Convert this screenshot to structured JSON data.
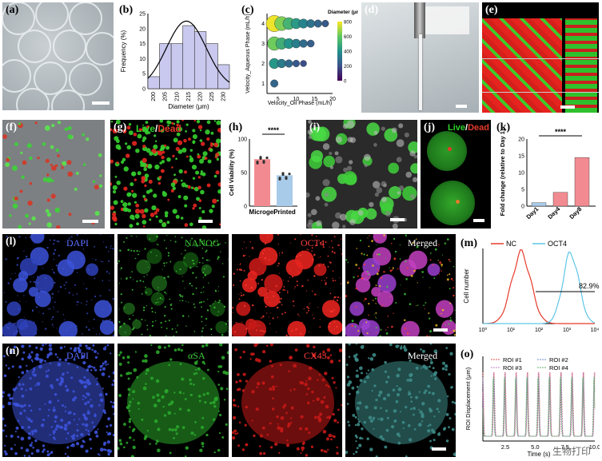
{
  "labels": {
    "a": "(a)",
    "b": "(b)",
    "c": "(c)",
    "d": "(d)",
    "e": "(e)",
    "f": "(f)",
    "g": "(g)",
    "h": "(h)",
    "i": "(i)",
    "j": "(j)",
    "k": "(k)",
    "l": "(l)",
    "m": "(m)",
    "n": "(n)",
    "o": "(o)"
  },
  "overlay": {
    "live": "Live",
    "slash": "/",
    "dead": "Dead",
    "dapi": "DAPI",
    "nanog": "NANOG",
    "oct4": "OCT4",
    "merged": "Merged",
    "asa": "αSA",
    "cx43": "CX43"
  },
  "colors": {
    "green": "#2fd12a",
    "red": "#e53a2a",
    "blue": "#3b4fd8",
    "pink": "#f28b91",
    "lightblue": "#a9cbea"
  },
  "watermark": "生物打印",
  "chart_data": [
    {
      "id": "b",
      "type": "bar",
      "xlabel": "Diameter (μm)",
      "ylabel": "Frequency (%)",
      "categories": [
        "200",
        "205",
        "210",
        "215",
        "220",
        "225",
        "230"
      ],
      "values": [
        4,
        15,
        15,
        21,
        19,
        15,
        8
      ],
      "ylim": [
        0,
        25
      ],
      "yticks": [
        "0",
        "5",
        "10",
        "15",
        "20",
        "25"
      ],
      "fit": "normal curve"
    },
    {
      "id": "c",
      "type": "scatter",
      "xlabel": "Velocity_Oil Phase (mL/h)",
      "ylabel": "Velocity_Aqueous Phase (mL/h)",
      "xticks": [
        "5",
        "10",
        "15",
        "20"
      ],
      "yticks": [
        "1",
        "2",
        "3",
        "4"
      ],
      "xlim": [
        2,
        20
      ],
      "ylim": [
        0.5,
        4.5
      ],
      "colorbar": {
        "title": "Diameter (μm)",
        "ticks": [
          "0",
          "200",
          "400",
          "600",
          "800"
        ]
      },
      "points": [
        {
          "x": 4,
          "y": 4,
          "d": 780
        },
        {
          "x": 6,
          "y": 4,
          "d": 640
        },
        {
          "x": 8,
          "y": 4,
          "d": 520
        },
        {
          "x": 10,
          "y": 4,
          "d": 430
        },
        {
          "x": 12,
          "y": 4,
          "d": 360
        },
        {
          "x": 14,
          "y": 4,
          "d": 300
        },
        {
          "x": 16,
          "y": 4,
          "d": 260
        },
        {
          "x": 18,
          "y": 4,
          "d": 220
        },
        {
          "x": 4,
          "y": 3,
          "d": 620
        },
        {
          "x": 6,
          "y": 3,
          "d": 500
        },
        {
          "x": 8,
          "y": 3,
          "d": 410
        },
        {
          "x": 10,
          "y": 3,
          "d": 340
        },
        {
          "x": 12,
          "y": 3,
          "d": 280
        },
        {
          "x": 14,
          "y": 3,
          "d": 240
        },
        {
          "x": 4,
          "y": 2,
          "d": 420
        },
        {
          "x": 6,
          "y": 2,
          "d": 330
        },
        {
          "x": 8,
          "y": 2,
          "d": 270
        },
        {
          "x": 10,
          "y": 2,
          "d": 220
        },
        {
          "x": 12,
          "y": 2,
          "d": 190
        },
        {
          "x": 4,
          "y": 1,
          "d": 260
        }
      ]
    },
    {
      "id": "h",
      "type": "bar",
      "ylabel": "Cell Viability (%)",
      "categories": [
        "Microgel",
        "Printed"
      ],
      "values": [
        70,
        46
      ],
      "ylim": [
        0,
        100
      ],
      "yticks": [
        "0",
        "50",
        "100"
      ],
      "significance": "****"
    },
    {
      "id": "k",
      "type": "bar",
      "ylabel": "Fold change (relative to Day 1)",
      "categories": [
        "Day1",
        "Day4",
        "Day8"
      ],
      "values": [
        1,
        4.1,
        14.5
      ],
      "ylim": [
        0,
        20
      ],
      "yticks": [
        "0",
        "5",
        "10",
        "15",
        "20"
      ],
      "significance": "****"
    },
    {
      "id": "m",
      "type": "line",
      "ylabel": "Cell number",
      "xticks": [
        "10⁰",
        "10¹",
        "10²",
        "10³",
        "10⁴"
      ],
      "series": [
        {
          "name": "NC",
          "color": "#e53a2a"
        },
        {
          "name": "OCT4",
          "color": "#5ec6e6"
        }
      ],
      "annotation": "82.9%"
    },
    {
      "id": "o",
      "type": "line",
      "ylabel": "ROI Displacement (μm)",
      "xlabel": "Time (s)",
      "xticks": [
        "2.5",
        "5.0",
        "7.5",
        "10.0"
      ],
      "series": [
        {
          "name": "ROI #1"
        },
        {
          "name": "ROI #2"
        },
        {
          "name": "ROI #3"
        },
        {
          "name": "ROI #4"
        }
      ]
    }
  ]
}
